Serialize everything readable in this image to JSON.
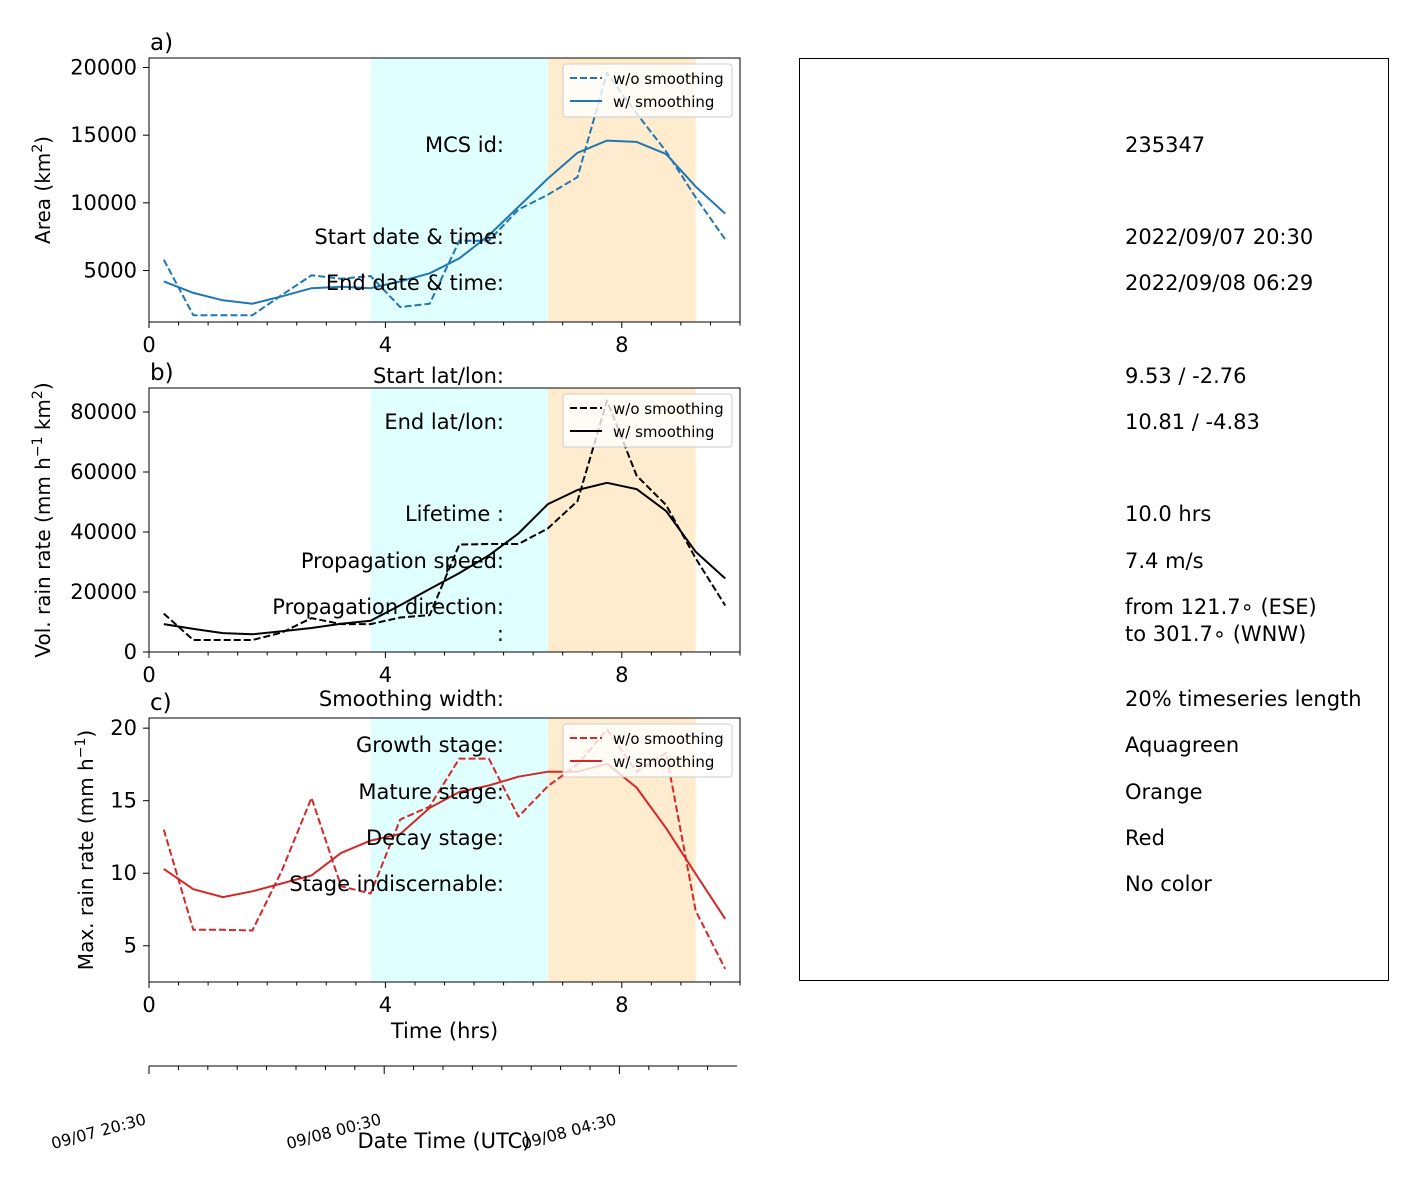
{
  "chart_data": [
    {
      "type": "line",
      "panel_label": "a)",
      "ylabel": "Area  (km$^2$)",
      "ylabel_main": "Area  (km",
      "ylabel_sup": "2",
      "ylabel_end": ")",
      "xlim": [
        0,
        10
      ],
      "ylim": [
        1200,
        20700
      ],
      "yticks": [
        5000,
        10000,
        15000,
        20000
      ],
      "xticks": [
        0,
        4,
        8
      ],
      "color": "#1f77b4",
      "legend_position": "upper right",
      "series": [
        {
          "name": "w/o smoothing",
          "style": "dashed",
          "x": [
            0.25,
            0.75,
            1.25,
            1.75,
            2.25,
            2.75,
            3.25,
            3.75,
            4.25,
            4.75,
            5.25,
            5.75,
            6.25,
            6.75,
            7.25,
            7.75,
            8.25,
            8.75,
            9.25,
            9.75
          ],
          "y": [
            5800,
            1700,
            1700,
            1700,
            3200,
            4650,
            4400,
            4600,
            2300,
            2550,
            7200,
            7200,
            9500,
            10600,
            11900,
            19600,
            16600,
            13800,
            10400,
            7300
          ]
        },
        {
          "name": "w/ smoothing",
          "style": "solid",
          "x": [
            0.25,
            0.75,
            1.25,
            1.75,
            2.25,
            2.75,
            3.25,
            3.75,
            4.25,
            4.75,
            5.25,
            5.75,
            6.25,
            6.75,
            7.25,
            7.75,
            8.25,
            8.75,
            9.25,
            9.75
          ],
          "y": [
            4200,
            3350,
            2800,
            2550,
            3100,
            3700,
            3800,
            3700,
            4200,
            4800,
            5900,
            7600,
            9700,
            11800,
            13700,
            14600,
            14500,
            13600,
            11200,
            9200
          ]
        }
      ]
    },
    {
      "type": "line",
      "panel_label": "b)",
      "ylabel": "Vol. rain rate (mm h$^{-1}$ km$^2$)",
      "ylabel_main": "Vol. rain rate (mm h",
      "ylabel_sup": "−1",
      "ylabel_mid": " km",
      "ylabel_sup2": "2",
      "ylabel_end": ")",
      "xlim": [
        0,
        10
      ],
      "ylim": [
        0,
        88000
      ],
      "yticks": [
        0,
        20000,
        40000,
        60000,
        80000
      ],
      "xticks": [
        0,
        4,
        8
      ],
      "color": "#000000",
      "legend_position": "upper right",
      "series": [
        {
          "name": "w/o smoothing",
          "style": "dashed",
          "x": [
            0.25,
            0.75,
            1.25,
            1.75,
            2.25,
            2.75,
            3.25,
            3.75,
            4.25,
            4.75,
            5.25,
            5.75,
            6.25,
            6.75,
            7.25,
            7.75,
            8.25,
            8.75,
            9.25,
            9.75
          ],
          "y": [
            12800,
            4000,
            4000,
            4000,
            6500,
            11300,
            9300,
            9300,
            11500,
            12300,
            35800,
            36000,
            36000,
            41200,
            50300,
            83800,
            58800,
            49000,
            31200,
            15500
          ]
        },
        {
          "name": "w/ smoothing",
          "style": "solid",
          "x": [
            0.25,
            0.75,
            1.25,
            1.75,
            2.25,
            2.75,
            3.25,
            3.75,
            4.25,
            4.75,
            5.25,
            5.75,
            6.25,
            6.75,
            7.25,
            7.75,
            8.25,
            8.75,
            9.25,
            9.75
          ],
          "y": [
            9300,
            7700,
            6300,
            5900,
            6900,
            8000,
            9400,
            10400,
            15600,
            21000,
            26300,
            32200,
            39500,
            49300,
            54000,
            56400,
            54300,
            47000,
            33400,
            24500
          ]
        }
      ]
    },
    {
      "type": "line",
      "panel_label": "c)",
      "ylabel": "Max. rain rate  (mm h$^{-1}$)",
      "ylabel_main": "Max. rain rate  (mm h",
      "ylabel_sup": "−1",
      "ylabel_end": ")",
      "xlim": [
        0,
        10
      ],
      "ylim": [
        2.5,
        20.7
      ],
      "yticks": [
        5,
        10,
        15,
        20
      ],
      "xticks": [
        0,
        4,
        8
      ],
      "xlabel": "Time (hrs)",
      "color": "#d62728",
      "legend_position": "upper right",
      "series": [
        {
          "name": "w/o smoothing",
          "style": "dashed",
          "x": [
            0.25,
            0.75,
            1.25,
            1.75,
            2.25,
            2.75,
            3.25,
            3.75,
            4.25,
            4.75,
            5.25,
            5.75,
            6.25,
            6.75,
            7.25,
            7.75,
            8.25,
            8.75,
            9.25,
            9.75
          ],
          "y": [
            13.0,
            6.1,
            6.1,
            6.05,
            10.2,
            15.2,
            9.1,
            8.6,
            13.7,
            14.6,
            17.9,
            17.9,
            13.9,
            16.0,
            17.5,
            19.9,
            17.0,
            18.3,
            7.4,
            3.4
          ]
        },
        {
          "name": "w/ smoothing",
          "style": "solid",
          "x": [
            0.25,
            0.75,
            1.25,
            1.75,
            2.25,
            2.75,
            3.25,
            3.75,
            4.25,
            4.75,
            5.25,
            5.75,
            6.25,
            6.75,
            7.25,
            7.75,
            8.25,
            8.75,
            9.25,
            9.75
          ],
          "y": [
            10.3,
            8.9,
            8.35,
            8.75,
            9.3,
            9.85,
            11.4,
            12.25,
            12.7,
            14.5,
            15.6,
            16.05,
            16.65,
            17.0,
            17.0,
            17.55,
            15.9,
            13.1,
            9.95,
            6.85
          ]
        }
      ]
    }
  ],
  "shading": {
    "growth": {
      "x_start": 3.75,
      "x_end": 6.75,
      "color": "#e0ffff"
    },
    "mature": {
      "x_start": 6.75,
      "x_end": 9.25,
      "color": "#ffebcd"
    }
  },
  "datetime_axis": {
    "xlabel": "Date Time (UTC)",
    "ticks": [
      {
        "x": 0,
        "label": "09/07 20:30"
      },
      {
        "x": 4,
        "label": "09/08 00:30"
      },
      {
        "x": 8,
        "label": "09/08 04:30"
      }
    ]
  },
  "info": {
    "rows": [
      {
        "label": "MCS id:",
        "value": "235347"
      },
      {
        "label": "Start date & time:",
        "value": "2022/09/07 20:30"
      },
      {
        "label": "End date & time:",
        "value": "2022/09/08 06:29"
      },
      {
        "label": "Start lat/lon:",
        "value": "9.53 / -2.76"
      },
      {
        "label": "End lat/lon:",
        "value": "10.81 / -4.83"
      },
      {
        "label": "Lifetime :",
        "value": "10.0 hrs"
      },
      {
        "label": "Propagation speed:",
        "value": "7.4 m/s"
      },
      {
        "label": "Propagation direction:",
        "value": "from 121.7∘ (ESE)"
      },
      {
        "label": ":",
        "value": "to   301.7∘ (WNW)"
      },
      {
        "label": "Smoothing width:",
        "value": "20% timeseries length"
      },
      {
        "label": "Growth stage:",
        "value": "Aquagreen"
      },
      {
        "label": "Mature stage:",
        "value": "Orange"
      },
      {
        "label": "Decay stage:",
        "value": "Red"
      },
      {
        "label": "Stage indiscernable:",
        "value": "No color"
      }
    ]
  }
}
